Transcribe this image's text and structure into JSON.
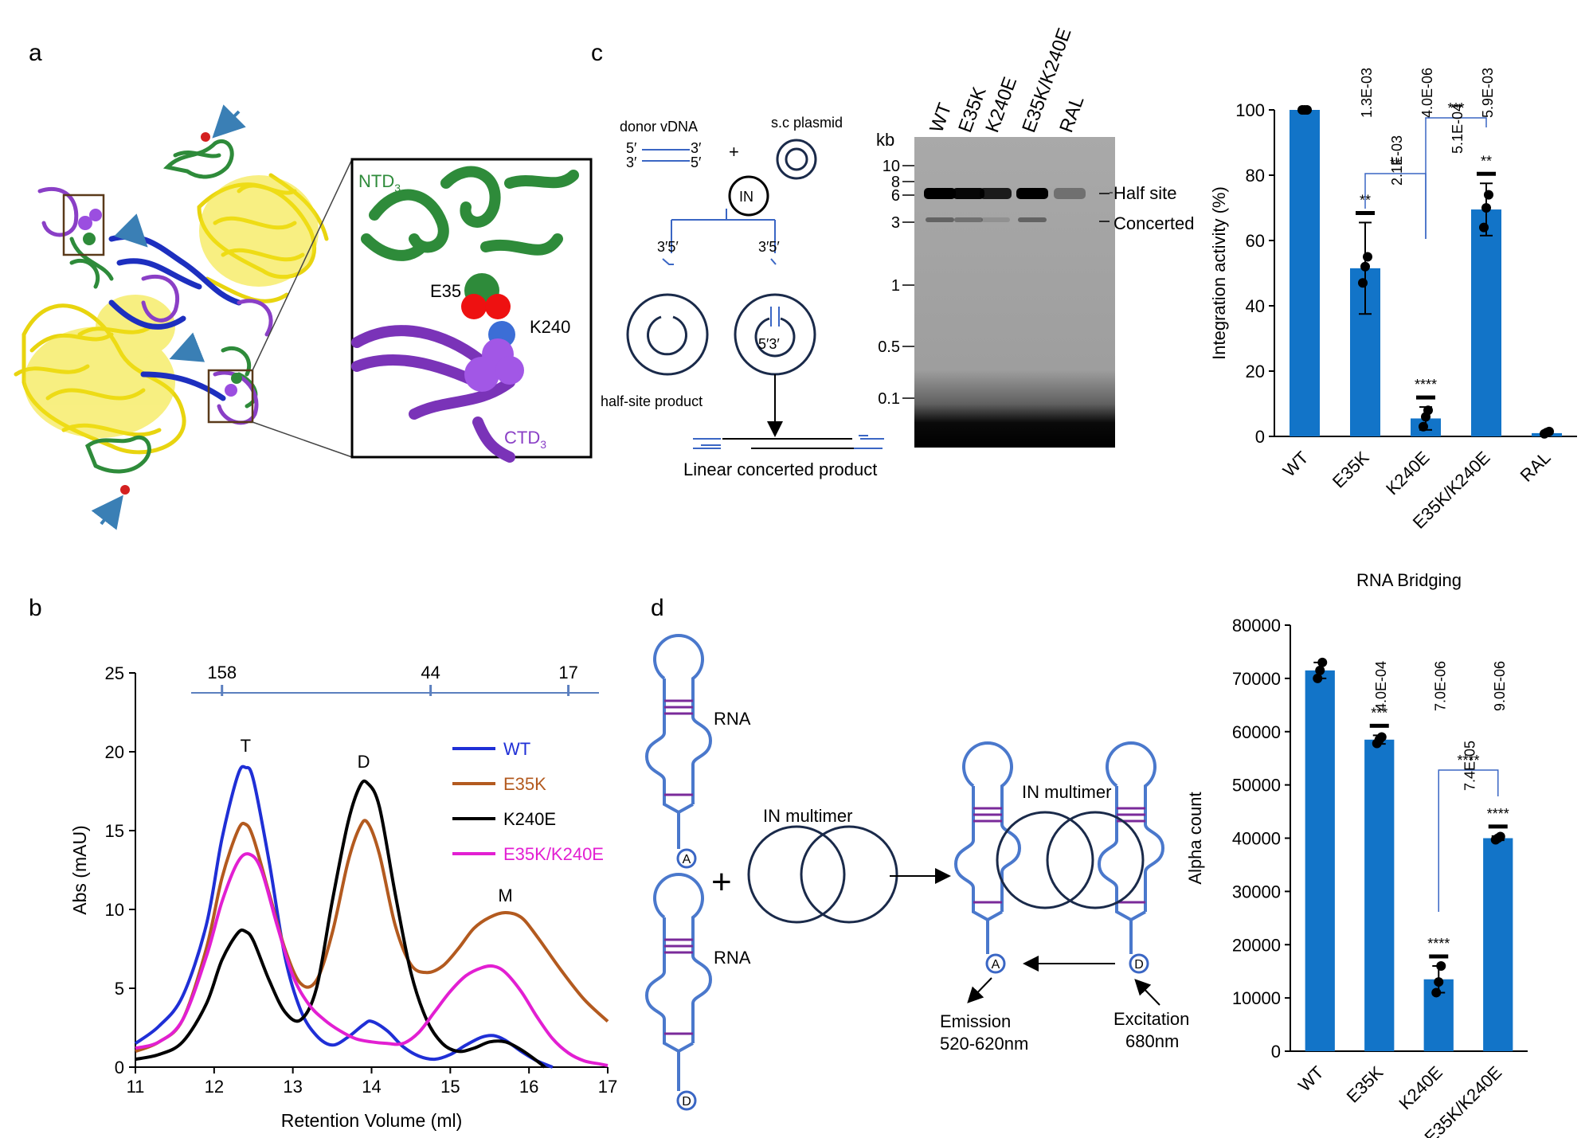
{
  "panels": {
    "a": "a",
    "b": "b",
    "c": "c",
    "d": "d"
  },
  "structure": {
    "inset_labels": {
      "ntd": "NTD",
      "ntd_sub": "3",
      "ctd": "CTD",
      "ctd_sub": "3",
      "e35": "E35",
      "k240": "K240"
    },
    "colors": {
      "yellow": "#f2e21b",
      "green": "#2e8b3a",
      "purple": "#8a3fc6",
      "blue": "#1d2fbf",
      "arrow": "#3a7fb5"
    }
  },
  "schematic_c": {
    "donor": "donor vDNA",
    "plasmid": "s.c plasmid",
    "plus": "+",
    "in": "IN",
    "ends": {
      "top_left": "5′",
      "top_right": "3′",
      "bottom_left": "3′",
      "bottom_right": "5′"
    },
    "left_ends": "3′5′",
    "right_ends": "3′5′",
    "inner_ends": "5′3′",
    "half_site_product": "half-site product",
    "linear_product": "Linear concerted product"
  },
  "gel": {
    "kb_label": "kb",
    "markers": [
      "10",
      "8",
      "6",
      "3",
      "1",
      "0.5",
      "0.1"
    ],
    "lanes": [
      "WT",
      "E35K",
      "K240E",
      "E35K/K240E",
      "RAL"
    ],
    "bands": {
      "half_site": "Half site",
      "concerted": "Concerted"
    },
    "half_site_intensity": [
      1.0,
      0.95,
      0.8,
      1.0,
      0.15
    ],
    "concerted_intensity": [
      0.5,
      0.4,
      0.15,
      0.5,
      0.0
    ]
  },
  "chart_data": [
    {
      "type": "line",
      "panel": "b",
      "xlabel": "Retention Volume (ml)",
      "ylabel": "Abs (mAU)",
      "xlim": [
        11,
        17
      ],
      "ylim": [
        0,
        25
      ],
      "xticks": [
        11,
        12,
        13,
        14,
        15,
        16,
        17
      ],
      "yticks": [
        0,
        5,
        10,
        15,
        20,
        25
      ],
      "mw_scale": {
        "labels": [
          "158",
          "44",
          "17"
        ],
        "positions": [
          12.1,
          14.75,
          16.5
        ]
      },
      "peak_labels": [
        {
          "text": "T",
          "x": 12.4,
          "y": 20.0
        },
        {
          "text": "D",
          "x": 13.9,
          "y": 19.0
        },
        {
          "text": "M",
          "x": 15.7,
          "y": 10.5
        }
      ],
      "legend_position": "right",
      "series": [
        {
          "name": "WT",
          "color": "#1f2fd6",
          "x": [
            11,
            11.3,
            11.6,
            11.9,
            12.1,
            12.3,
            12.4,
            12.5,
            12.7,
            12.9,
            13.1,
            13.3,
            13.5,
            13.7,
            13.9,
            14.0,
            14.2,
            14.4,
            14.6,
            14.8,
            15.0,
            15.2,
            15.4,
            15.55,
            15.7,
            15.9,
            16.1,
            16.3
          ],
          "y": [
            1.5,
            2.6,
            4.5,
            9.0,
            14.5,
            18.5,
            19.0,
            18.2,
            13.0,
            7.0,
            3.6,
            2.0,
            1.4,
            1.9,
            2.7,
            2.9,
            2.3,
            1.3,
            0.7,
            0.5,
            0.8,
            1.4,
            1.9,
            2.0,
            1.7,
            1.0,
            0.4,
            0.0
          ]
        },
        {
          "name": "E35K",
          "color": "#b35a1f",
          "x": [
            11,
            11.3,
            11.6,
            11.9,
            12.1,
            12.3,
            12.4,
            12.5,
            12.7,
            12.9,
            13.1,
            13.3,
            13.5,
            13.7,
            13.85,
            13.95,
            14.1,
            14.3,
            14.5,
            14.7,
            14.9,
            15.1,
            15.3,
            15.5,
            15.7,
            15.9,
            16.1,
            16.4,
            16.7,
            17.0
          ],
          "y": [
            1.0,
            1.6,
            3.0,
            7.5,
            12.0,
            15.0,
            15.4,
            14.5,
            11.0,
            7.5,
            5.3,
            5.5,
            8.5,
            13.0,
            15.2,
            15.5,
            13.5,
            9.0,
            6.5,
            6.0,
            6.4,
            7.5,
            8.8,
            9.5,
            9.8,
            9.5,
            8.3,
            6.2,
            4.3,
            2.9
          ]
        },
        {
          "name": "K240E",
          "color": "#000000",
          "x": [
            11,
            11.3,
            11.6,
            11.9,
            12.1,
            12.3,
            12.4,
            12.5,
            12.7,
            12.9,
            13.1,
            13.3,
            13.5,
            13.7,
            13.85,
            13.95,
            14.1,
            14.3,
            14.5,
            14.7,
            14.9,
            15.1,
            15.3,
            15.5,
            15.7,
            15.9,
            16.1,
            16.2
          ],
          "y": [
            0.5,
            0.8,
            1.6,
            4.0,
            6.8,
            8.5,
            8.6,
            8.0,
            5.5,
            3.5,
            3.0,
            5.0,
            10.5,
            15.5,
            17.8,
            18.0,
            16.5,
            11.0,
            6.0,
            3.0,
            1.5,
            1.0,
            1.2,
            1.6,
            1.6,
            1.1,
            0.4,
            0.0
          ]
        },
        {
          "name": "E35K/K240E",
          "color": "#e21fd2",
          "x": [
            11,
            11.3,
            11.6,
            11.9,
            12.1,
            12.3,
            12.45,
            12.6,
            12.8,
            13.0,
            13.2,
            13.4,
            13.6,
            13.8,
            14.0,
            14.2,
            14.4,
            14.6,
            14.8,
            15.0,
            15.2,
            15.4,
            15.55,
            15.7,
            15.9,
            16.1,
            16.3,
            16.5,
            16.7,
            16.9,
            17.0
          ],
          "y": [
            1.2,
            1.6,
            3.0,
            7.0,
            10.5,
            13.0,
            13.5,
            12.5,
            9.0,
            5.8,
            4.0,
            3.0,
            2.3,
            1.8,
            1.6,
            1.5,
            1.5,
            2.2,
            3.5,
            4.8,
            5.8,
            6.3,
            6.4,
            6.0,
            4.8,
            3.2,
            1.8,
            0.9,
            0.4,
            0.2,
            0.1
          ]
        }
      ]
    },
    {
      "type": "bar",
      "panel": "c",
      "ylabel": "Integration activity (%)",
      "ylim": [
        0,
        100
      ],
      "yticks": [
        0,
        20,
        40,
        60,
        80,
        100
      ],
      "categories": [
        "WT",
        "E35K",
        "K240E",
        "E35K/K240E",
        "RAL"
      ],
      "values": [
        100,
        51.5,
        5.5,
        69.5,
        1.0
      ],
      "error": [
        0,
        14,
        3.5,
        8,
        0
      ],
      "points": [
        [
          100,
          100,
          100
        ],
        [
          47,
          52,
          55
        ],
        [
          3,
          6,
          8
        ],
        [
          64,
          70,
          74
        ],
        [
          0.8,
          1.2,
          1.5
        ]
      ],
      "stars": [
        "",
        "**",
        "****",
        "**",
        ""
      ],
      "pvalues": [
        "",
        "1.3E-03",
        "4.0E-06",
        "5.9E-03",
        ""
      ],
      "brackets": [
        {
          "from": 1,
          "to": 2,
          "stars": "**",
          "pvalue": "2.1E-03"
        },
        {
          "from": 2,
          "to": 3,
          "stars": "***",
          "pvalue": "5.1E-04"
        }
      ],
      "color": "#1274c8"
    },
    {
      "type": "bar",
      "panel": "d",
      "title": "RNA Bridging",
      "ylabel": "Alpha count",
      "ylim": [
        0,
        80000
      ],
      "yticks": [
        0,
        10000,
        20000,
        30000,
        40000,
        50000,
        60000,
        70000,
        80000
      ],
      "categories": [
        "WT",
        "E35K",
        "K240E",
        "E35K/K240E"
      ],
      "values": [
        71500,
        58500,
        13500,
        40000
      ],
      "error": [
        1500,
        800,
        2500,
        400
      ],
      "points": [
        [
          70000,
          71500,
          73000
        ],
        [
          57800,
          58500,
          59000
        ],
        [
          11000,
          13000,
          16000
        ],
        [
          39700,
          40000,
          40300
        ]
      ],
      "stars": [
        "",
        "***",
        "****",
        "****"
      ],
      "pvalues": [
        "",
        "4.0E-04",
        "7.0E-06",
        "9.0E-06"
      ],
      "brackets": [
        {
          "from": 2,
          "to": 3,
          "stars": "****",
          "pvalue": "7.4E-05"
        }
      ],
      "color": "#1274c8"
    }
  ],
  "schematic_d": {
    "rna_top": "RNA",
    "rna_bottom": "RNA",
    "in_multimer_left": "IN multimer",
    "in_multimer_right": "IN multimer",
    "plus": "+",
    "acceptor": "A",
    "donor": "D",
    "emission_title": "Emission",
    "emission_range": "520-620nm",
    "excitation_title": "Excitation",
    "excitation_range": "680nm"
  }
}
